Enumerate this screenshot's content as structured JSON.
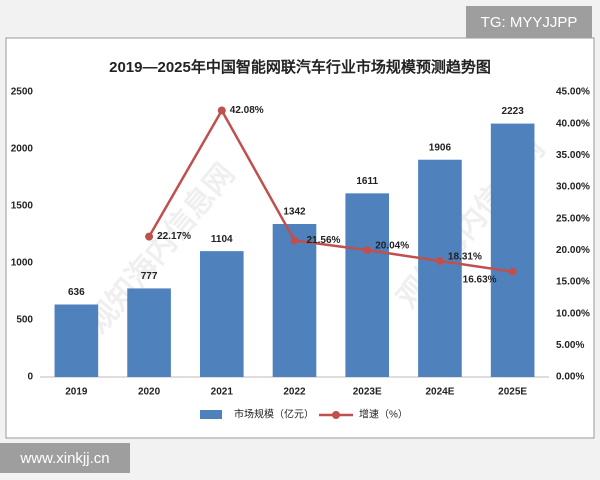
{
  "badge": "TG: MYYJJPP",
  "footer": "www.xinkjj.cn",
  "watermark": "观知海内信息网",
  "chart_data": {
    "type": "bar",
    "title": "2019—2025年中国智能网联汽车行业市场规模预测趋势图",
    "categories": [
      "2019",
      "2020",
      "2021",
      "2022",
      "2023E",
      "2024E",
      "2025E"
    ],
    "series": [
      {
        "name": "市场规模（亿元）",
        "type": "bar",
        "color": "#4f81bd",
        "values": [
          636,
          777,
          1104,
          1342,
          1611,
          1906,
          2223
        ]
      },
      {
        "name": "增速（%）",
        "type": "line",
        "axis": "y2",
        "color": "#c0504d",
        "values": [
          null,
          22.17,
          42.08,
          21.56,
          20.04,
          18.31,
          16.63
        ],
        "value_labels": [
          null,
          "22.17%",
          "42.08%",
          "21.56%",
          "20.04%",
          "18.31%",
          "16.63%"
        ]
      }
    ],
    "ylim": [
      0,
      2500
    ],
    "yticks": [
      0,
      500,
      1000,
      1500,
      2000,
      2500
    ],
    "y2lim": [
      0,
      45
    ],
    "y2ticks": [
      {
        "value": 0,
        "label": "0.00%"
      },
      {
        "value": 5,
        "label": "5.00%"
      },
      {
        "value": 10,
        "label": "10.00%"
      },
      {
        "value": 15,
        "label": "15.00%"
      },
      {
        "value": 20,
        "label": "20.00%"
      },
      {
        "value": 25,
        "label": "25.00%"
      },
      {
        "value": 30,
        "label": "30.00%"
      },
      {
        "value": 35,
        "label": "35.00%"
      },
      {
        "value": 40,
        "label": "40.00%"
      },
      {
        "value": 45,
        "label": "45.00%"
      }
    ]
  }
}
